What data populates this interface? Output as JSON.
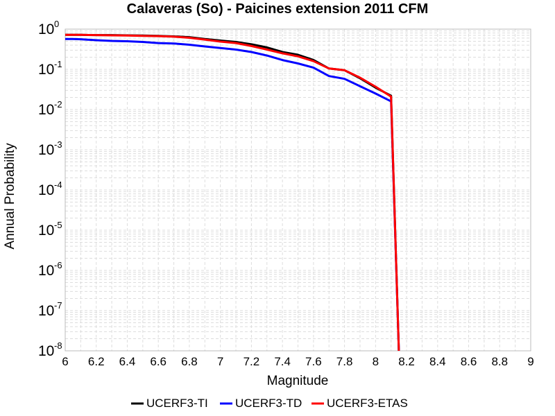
{
  "chart_data": {
    "type": "line",
    "title": "Calaveras (So) - Paicines extension 2011 CFM",
    "xlabel": "Magnitude",
    "ylabel": "Annual Probability",
    "xlim": [
      6,
      9
    ],
    "ylim": [
      1e-08,
      1
    ],
    "y_scale": "log",
    "grid": true,
    "legend_position": "bottom",
    "x_ticks": [
      6,
      6.2,
      6.4,
      6.6,
      6.8,
      7,
      7.2,
      7.4,
      7.6,
      7.8,
      8,
      8.2,
      8.4,
      8.6,
      8.8,
      9
    ],
    "x_tick_labels": [
      "6",
      "6.2",
      "6.4",
      "6.6",
      "6.8",
      "7",
      "7.2",
      "7.4",
      "7.6",
      "7.8",
      "8",
      "8.2",
      "8.4",
      "8.6",
      "8.8",
      "9"
    ],
    "y_ticks": [
      {
        "value": 1,
        "base": "10",
        "exp": "0"
      },
      {
        "value": 0.1,
        "base": "10",
        "exp": "-1"
      },
      {
        "value": 0.01,
        "base": "10",
        "exp": "-2"
      },
      {
        "value": 0.001,
        "base": "10",
        "exp": "-3"
      },
      {
        "value": 0.0001,
        "base": "10",
        "exp": "-4"
      },
      {
        "value": 1e-05,
        "base": "10",
        "exp": "-5"
      },
      {
        "value": 1e-06,
        "base": "10",
        "exp": "-6"
      },
      {
        "value": 1e-07,
        "base": "10",
        "exp": "-7"
      },
      {
        "value": 1e-08,
        "base": "10",
        "exp": "-8"
      }
    ],
    "series": [
      {
        "name": "UCERF3-TI",
        "color": "#000000",
        "x": [
          6.0,
          6.1,
          6.2,
          6.3,
          6.4,
          6.5,
          6.6,
          6.7,
          6.8,
          6.9,
          7.0,
          7.1,
          7.2,
          7.3,
          7.4,
          7.5,
          7.6,
          7.7,
          7.8,
          7.9,
          8.0,
          8.1,
          8.15
        ],
        "y": [
          0.72,
          0.72,
          0.71,
          0.71,
          0.7,
          0.69,
          0.68,
          0.66,
          0.63,
          0.57,
          0.52,
          0.48,
          0.42,
          0.35,
          0.27,
          0.23,
          0.17,
          0.105,
          0.095,
          0.06,
          0.035,
          0.022,
          1e-08
        ]
      },
      {
        "name": "UCERF3-TD",
        "color": "#0000ff",
        "x": [
          6.0,
          6.05,
          6.1,
          6.2,
          6.3,
          6.4,
          6.5,
          6.6,
          6.7,
          6.8,
          6.9,
          7.0,
          7.1,
          7.2,
          7.3,
          7.4,
          7.5,
          7.6,
          7.7,
          7.8,
          7.9,
          8.0,
          8.1,
          8.15
        ],
        "y": [
          0.57,
          0.57,
          0.56,
          0.53,
          0.51,
          0.5,
          0.48,
          0.45,
          0.44,
          0.41,
          0.37,
          0.34,
          0.31,
          0.27,
          0.22,
          0.17,
          0.14,
          0.11,
          0.068,
          0.058,
          0.038,
          0.025,
          0.016,
          1e-08
        ]
      },
      {
        "name": "UCERF3-ETAS",
        "color": "#ff0000",
        "x": [
          6.0,
          6.1,
          6.2,
          6.3,
          6.4,
          6.5,
          6.6,
          6.7,
          6.8,
          6.9,
          7.0,
          7.1,
          7.2,
          7.3,
          7.4,
          7.5,
          7.6,
          7.7,
          7.8,
          7.9,
          8.0,
          8.1,
          8.15
        ],
        "y": [
          0.72,
          0.72,
          0.71,
          0.7,
          0.69,
          0.68,
          0.67,
          0.65,
          0.61,
          0.55,
          0.49,
          0.45,
          0.38,
          0.31,
          0.25,
          0.21,
          0.16,
          0.105,
          0.095,
          0.062,
          0.037,
          0.021,
          1e-08
        ]
      }
    ]
  }
}
